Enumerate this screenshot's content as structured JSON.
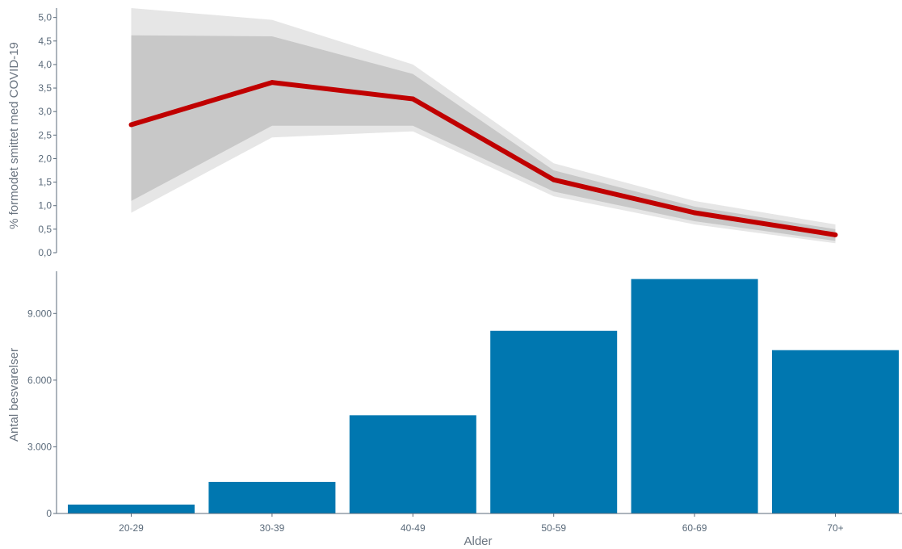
{
  "chart_data": [
    {
      "type": "line",
      "ylabel": "% formodet smittet med COVID-19",
      "xlabel": "",
      "categories": [
        "20-29",
        "30-39",
        "40-49",
        "50-59",
        "60-69",
        "70+"
      ],
      "ylim": [
        0,
        5.2
      ],
      "yticks": [
        "0,0",
        "0,5",
        "1,0",
        "1,5",
        "2,0",
        "2,5",
        "3,0",
        "3,5",
        "4,0",
        "4,5",
        "5,0"
      ],
      "series": [
        {
          "values": [
            2.72,
            3.62,
            3.27,
            1.55,
            0.85,
            0.38
          ]
        }
      ],
      "bands": [
        {
          "lower": [
            0.85,
            2.45,
            2.58,
            1.2,
            0.6,
            0.2
          ],
          "upper": [
            5.2,
            4.95,
            4.0,
            1.9,
            1.1,
            0.6
          ],
          "color": "#e6e6e6"
        },
        {
          "lower": [
            1.1,
            2.7,
            2.7,
            1.3,
            0.67,
            0.25
          ],
          "upper": [
            4.62,
            4.6,
            3.8,
            1.75,
            0.98,
            0.5
          ],
          "color": "#c8c8c8"
        }
      ],
      "line_color": "#c00000",
      "grid": false
    },
    {
      "type": "bar",
      "ylabel": "Antal besvarelser",
      "xlabel": "Alder",
      "categories": [
        "20-29",
        "30-39",
        "40-49",
        "50-59",
        "60-69",
        "70+"
      ],
      "values": [
        400,
        1420,
        4420,
        8220,
        10550,
        7350
      ],
      "ylim": [
        0,
        10900
      ],
      "yticks": [
        "0",
        "3.000",
        "6.000",
        "9.000"
      ],
      "bar_color": "#0077b0",
      "grid": false
    }
  ]
}
